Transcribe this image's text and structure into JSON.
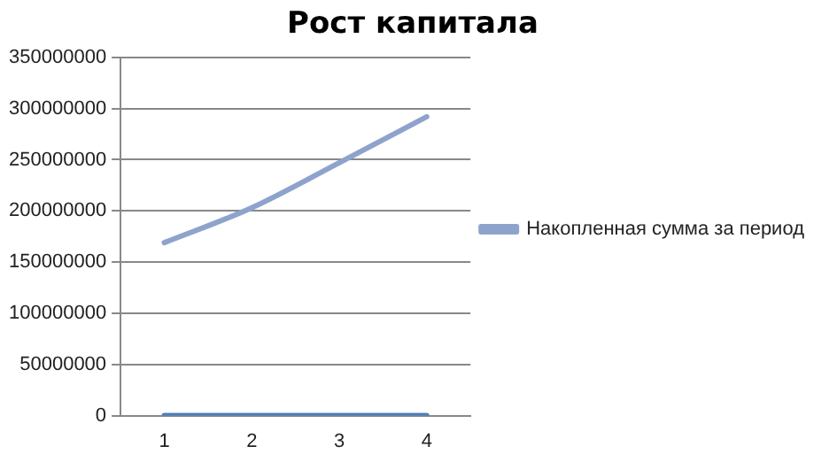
{
  "chart_data": {
    "type": "line",
    "title": "Рост капитала",
    "categories": [
      "1",
      "2",
      "3",
      "4"
    ],
    "series": [
      {
        "name": "Накопленная сумма за период",
        "color": "#8ea3cc",
        "values": [
          169000000,
          203000000,
          247000000,
          292000000
        ]
      },
      {
        "color": "#4a7ebb",
        "values": [
          0,
          0,
          0,
          0
        ]
      }
    ],
    "ylim": [
      0,
      350000000
    ],
    "yticks": [
      0,
      50000000,
      100000000,
      150000000,
      200000000,
      250000000,
      300000000,
      350000000
    ],
    "grid": "y",
    "legend": "right",
    "marker": "none",
    "line_style": "solid"
  }
}
